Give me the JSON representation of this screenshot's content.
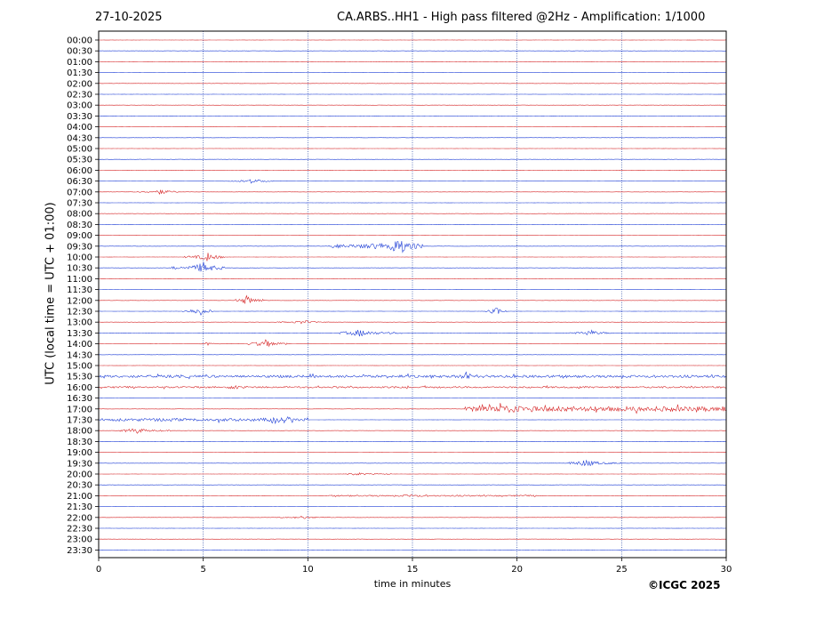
{
  "header": {
    "date": "27-10-2025",
    "title": "CA.ARBS..HH1 - High pass filtered @2Hz - Amplification: 1/1000"
  },
  "footer": {
    "copyright": "©ICGC 2025"
  },
  "chart_data": {
    "type": "line",
    "title": "CA.ARBS..HH1 - High pass filtered @2Hz - Amplification: 1/1000",
    "xlabel": "time in minutes",
    "ylabel": "UTC (local time = UTC + 01:00)",
    "xlim": [
      0,
      30
    ],
    "x_ticks": [
      0,
      5,
      10,
      15,
      20,
      25,
      30
    ],
    "y_ticks": [
      "00:00",
      "00:30",
      "01:00",
      "01:30",
      "02:00",
      "02:30",
      "03:00",
      "03:30",
      "04:00",
      "04:30",
      "05:00",
      "05:30",
      "06:00",
      "06:30",
      "07:00",
      "07:30",
      "08:00",
      "08:30",
      "09:00",
      "09:30",
      "10:00",
      "10:30",
      "11:00",
      "11:30",
      "12:00",
      "12:30",
      "13:00",
      "13:30",
      "14:00",
      "14:30",
      "15:00",
      "15:30",
      "16:00",
      "16:30",
      "17:00",
      "17:30",
      "18:00",
      "18:30",
      "19:00",
      "19:30",
      "20:00",
      "20:30",
      "21:00",
      "21:30",
      "22:00",
      "22:30",
      "23:00",
      "23:30"
    ],
    "grid": "vertical dotted at x ticks",
    "trace_colors": [
      "#d62728",
      "#1f3fd6"
    ],
    "events": [
      {
        "row": "06:30",
        "start": 6.0,
        "end": 8.5,
        "peak": 7.3,
        "amp": 0.18
      },
      {
        "row": "07:00",
        "start": 1.5,
        "end": 3.8,
        "peak": 3.0,
        "amp": 0.2
      },
      {
        "row": "09:30",
        "start": 11.0,
        "end": 15.5,
        "peak": 14.3,
        "amp": 0.6
      },
      {
        "row": "10:00",
        "start": 4.0,
        "end": 6.0,
        "peak": 5.2,
        "amp": 0.35
      },
      {
        "row": "10:30",
        "start": 3.5,
        "end": 6.0,
        "peak": 5.0,
        "amp": 0.45
      },
      {
        "row": "12:00",
        "start": 6.5,
        "end": 8.0,
        "peak": 7.1,
        "amp": 0.4
      },
      {
        "row": "12:30",
        "start": 4.0,
        "end": 5.5,
        "peak": 4.8,
        "amp": 0.4
      },
      {
        "row": "12:30",
        "start": 18.5,
        "end": 19.5,
        "peak": 19.0,
        "amp": 0.35
      },
      {
        "row": "13:00",
        "start": 8.5,
        "end": 11.0,
        "peak": 9.8,
        "amp": 0.15
      },
      {
        "row": "13:30",
        "start": 11.5,
        "end": 14.5,
        "peak": 12.5,
        "amp": 0.3
      },
      {
        "row": "13:30",
        "start": 22.5,
        "end": 24.5,
        "peak": 23.5,
        "amp": 0.25
      },
      {
        "row": "14:00",
        "start": 7.0,
        "end": 9.0,
        "peak": 8.0,
        "amp": 0.35
      },
      {
        "row": "14:00",
        "start": 4.8,
        "end": 5.8,
        "peak": 5.2,
        "amp": 0.15
      },
      {
        "row": "15:30",
        "start": 0.0,
        "end": 30.0,
        "peak": 17.6,
        "amp": 0.22
      },
      {
        "row": "16:00",
        "start": 0.0,
        "end": 30.0,
        "peak": 6.5,
        "amp": 0.15
      },
      {
        "row": "17:00",
        "start": 17.5,
        "end": 30.0,
        "peak": 19.5,
        "amp": 0.45
      },
      {
        "row": "17:30",
        "start": 0.0,
        "end": 10.0,
        "peak": 8.4,
        "amp": 0.25
      },
      {
        "row": "18:00",
        "start": 1.0,
        "end": 3.5,
        "peak": 1.8,
        "amp": 0.25
      },
      {
        "row": "19:30",
        "start": 22.5,
        "end": 25.0,
        "peak": 23.3,
        "amp": 0.3
      },
      {
        "row": "20:00",
        "start": 11.5,
        "end": 14.0,
        "peak": 12.4,
        "amp": 0.12
      },
      {
        "row": "21:00",
        "start": 11.0,
        "end": 21.0,
        "peak": 15.0,
        "amp": 0.12
      },
      {
        "row": "22:00",
        "start": 8.5,
        "end": 11.5,
        "peak": 9.8,
        "amp": 0.12
      }
    ]
  }
}
